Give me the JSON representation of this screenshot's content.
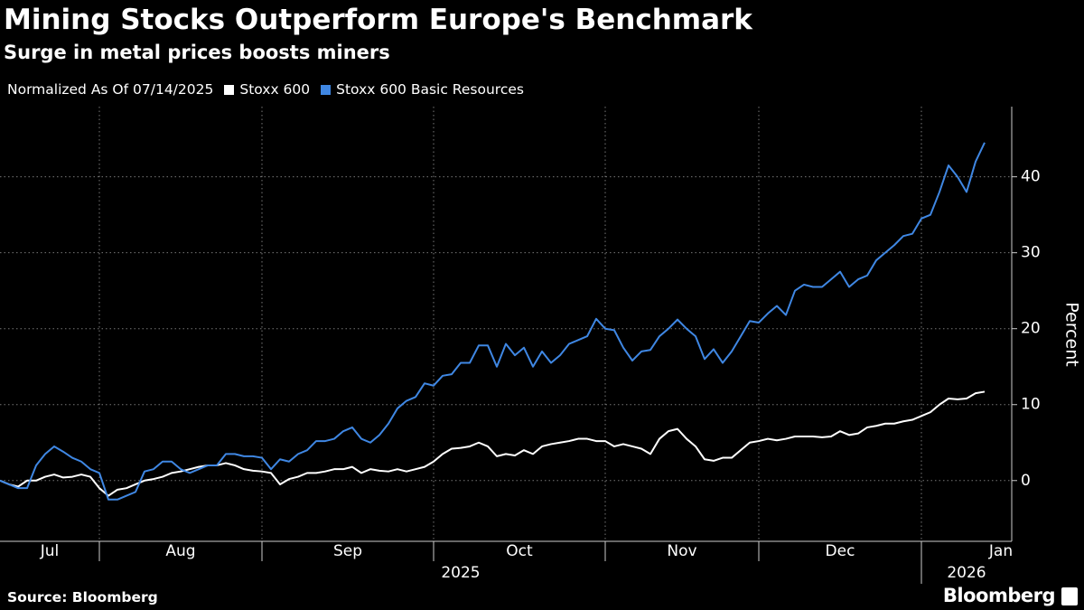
{
  "chart_data": {
    "type": "line",
    "title": "Mining Stocks Outperform Europe's Benchmark",
    "subtitle": "Surge in metal prices boosts miners",
    "legend_title": "Normalized As Of 07/14/2025",
    "y_label": "Percent",
    "source": "Source: Bloomberg",
    "brand": "Bloomberg",
    "year_labels": [
      "2025",
      "2026"
    ],
    "categories": [
      "Jul",
      null,
      null,
      null,
      null,
      null,
      null,
      null,
      null,
      null,
      null,
      "Aug",
      null,
      null,
      null,
      null,
      null,
      null,
      null,
      null,
      null,
      null,
      null,
      null,
      null,
      null,
      null,
      null,
      null,
      "Sep",
      null,
      null,
      null,
      null,
      null,
      null,
      null,
      null,
      null,
      null,
      null,
      null,
      null,
      null,
      null,
      null,
      null,
      null,
      "Oct",
      null,
      null,
      null,
      null,
      null,
      null,
      null,
      null,
      null,
      null,
      null,
      null,
      null,
      null,
      null,
      null,
      null,
      null,
      "Nov",
      null,
      null,
      null,
      null,
      null,
      null,
      null,
      null,
      null,
      null,
      null,
      null,
      null,
      null,
      null,
      null,
      "Dec",
      null,
      null,
      null,
      null,
      null,
      null,
      null,
      null,
      null,
      null,
      null,
      null,
      null,
      null,
      null,
      null,
      null,
      "Jan",
      null,
      null,
      null,
      null,
      null,
      null,
      null
    ],
    "series": [
      {
        "name": "Stoxx 600",
        "color": "#ffffff",
        "values": [
          0,
          -0.5,
          -0.8,
          0,
          0,
          0.5,
          0.8,
          0.4,
          0.5,
          0.8,
          0.5,
          -1,
          -2,
          -1.2,
          -1,
          -0.5,
          0,
          0.2,
          0.5,
          1,
          1.2,
          1.5,
          1.8,
          2,
          2,
          2.3,
          2,
          1.5,
          1.3,
          1.2,
          1,
          -0.5,
          0.2,
          0.5,
          1,
          1,
          1.2,
          1.5,
          1.5,
          1.8,
          1,
          1.5,
          1.3,
          1.2,
          1.5,
          1.2,
          1.5,
          1.8,
          2.5,
          3.5,
          4.2,
          4.3,
          4.5,
          5,
          4.5,
          3.2,
          3.5,
          3.3,
          4,
          3.5,
          4.5,
          4.8,
          5,
          5.2,
          5.5,
          5.5,
          5.2,
          5.2,
          4.5,
          4.8,
          4.5,
          4.2,
          3.5,
          5.5,
          6.5,
          6.8,
          5.5,
          4.5,
          2.8,
          2.6,
          3,
          3,
          4,
          5,
          5.2,
          5.5,
          5.3,
          5.5,
          5.8,
          5.8,
          5.8,
          5.7,
          5.8,
          6.5,
          6,
          6.2,
          7,
          7.2,
          7.5,
          7.5,
          7.8,
          8,
          8.5,
          9,
          10,
          10.8,
          10.7,
          10.8,
          11.5,
          11.7
        ]
      },
      {
        "name": "Stoxx 600 Basic Resources",
        "color": "#3f87e3",
        "values": [
          0,
          -0.5,
          -1,
          -1,
          2,
          3.5,
          4.5,
          3.8,
          3,
          2.5,
          1.5,
          1,
          -2.5,
          -2.5,
          -2,
          -1.5,
          1.2,
          1.5,
          2.5,
          2.5,
          1.5,
          1,
          1.5,
          2,
          2,
          3.5,
          3.5,
          3.2,
          3.2,
          3,
          1.5,
          2.8,
          2.5,
          3.5,
          4,
          5.2,
          5.2,
          5.5,
          6.5,
          7,
          5.5,
          5,
          6,
          7.5,
          9.5,
          10.5,
          11,
          12.8,
          12.5,
          13.8,
          14,
          15.5,
          15.5,
          17.8,
          17.8,
          15,
          18,
          16.5,
          17.5,
          15,
          17,
          15.5,
          16.5,
          18,
          18.5,
          19,
          21.3,
          20,
          19.8,
          17.5,
          15.8,
          17,
          17.2,
          19,
          20,
          21.2,
          20,
          19,
          16,
          17.3,
          15.5,
          17,
          19,
          21,
          20.8,
          22,
          23,
          21.8,
          25,
          25.8,
          25.5,
          25.5,
          26.5,
          27.5,
          25.5,
          26.5,
          27,
          29,
          30,
          31,
          32.2,
          32.5,
          34.5,
          35,
          38,
          41.5,
          40,
          38,
          42,
          44.5
        ]
      }
    ],
    "ylim": [
      -8,
      49
    ],
    "yticks": [
      0,
      10,
      20,
      30,
      40
    ],
    "grid": true
  }
}
